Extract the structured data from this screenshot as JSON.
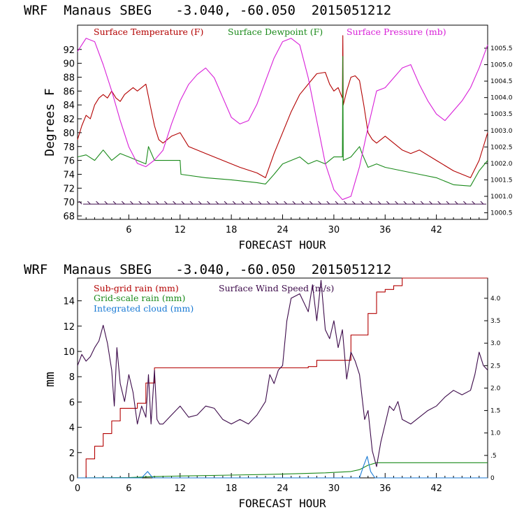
{
  "chart_data": [
    {
      "type": "line",
      "title": "WRF  Manaus SBEG   -3.040, -60.050  2015051212",
      "xlabel": "FORECAST HOUR",
      "ylabel": "Degrees F",
      "xlim": [
        0,
        48
      ],
      "ylim": [
        67.5,
        95.5
      ],
      "x_ticks": [
        6,
        12,
        18,
        24,
        30,
        36,
        42
      ],
      "y_ticks": [
        68,
        70,
        72,
        74,
        76,
        78,
        80,
        82,
        84,
        86,
        88,
        90,
        92
      ],
      "y2_ticks": [
        "1000.5",
        "1001.0",
        "1001.5",
        "1002.0",
        "1002.5",
        "1003.0",
        "1003.5",
        "1004.0",
        "1004.5",
        "1005.0",
        "1005.5"
      ],
      "y2_lim": [
        1000.3,
        1006.2
      ],
      "legend": [
        {
          "label": "Surface Temperature (F)",
          "color": "#b30000"
        },
        {
          "label": "Surface Dewpoint (F)",
          "color": "#1a8a1a"
        },
        {
          "label": "Surface Pressure (mb)",
          "color": "#d81fd8"
        }
      ],
      "series": [
        {
          "name": "Surface Temperature (F)",
          "color": "#b30000",
          "axis": "left",
          "x": [
            0,
            0.5,
            1,
            1.5,
            2,
            2.5,
            3,
            3.5,
            4,
            4.5,
            5,
            5.5,
            6,
            6.5,
            7,
            7.5,
            8,
            8.5,
            9,
            9.5,
            10,
            11,
            12,
            13,
            15,
            17,
            19,
            21,
            22,
            23,
            24,
            25,
            26,
            27,
            28,
            29,
            29.5,
            30,
            30.5,
            31,
            31.05,
            31.1,
            31.5,
            32,
            32.5,
            33,
            33.5,
            34,
            34.5,
            35,
            36,
            37,
            38,
            39,
            40,
            42,
            44,
            46,
            47,
            48
          ],
          "y": [
            79,
            81,
            82.5,
            82,
            84,
            85,
            85.5,
            85,
            86,
            85,
            84.5,
            85.5,
            86,
            86.5,
            86,
            86.5,
            87,
            84,
            81,
            79,
            78.5,
            79.5,
            80,
            78,
            77,
            76,
            75,
            74.2,
            73.5,
            77,
            80,
            83,
            85.5,
            87,
            88.5,
            88.7,
            87,
            86,
            86.5,
            85,
            94,
            84,
            86,
            88,
            88.2,
            87.5,
            84,
            80,
            79,
            78.5,
            79.5,
            78.5,
            77.5,
            77,
            77.5,
            76,
            74.5,
            73.5,
            76,
            80
          ]
        },
        {
          "name": "Surface Dewpoint (F)",
          "color": "#1a8a1a",
          "axis": "left",
          "x": [
            0,
            1,
            2,
            3,
            4,
            5,
            6,
            7,
            8,
            8.3,
            9,
            10,
            12,
            12.1,
            15,
            18,
            21,
            22,
            23,
            24,
            25,
            26,
            27,
            28,
            29,
            30,
            31,
            31.05,
            31.1,
            32,
            33,
            33.3,
            34,
            35,
            36,
            38,
            40,
            42,
            44,
            46,
            47,
            48
          ],
          "y": [
            76.5,
            76.8,
            76,
            77.5,
            76,
            77,
            76.5,
            76,
            75.5,
            78,
            76,
            76,
            76,
            74,
            73.5,
            73.2,
            72.8,
            72.6,
            74,
            75.5,
            76,
            76.5,
            75.5,
            76,
            75.5,
            76.5,
            76.5,
            91,
            76,
            76.5,
            78,
            77,
            75,
            75.5,
            75,
            74.5,
            74,
            73.5,
            72.5,
            72.3,
            74.5,
            76
          ]
        },
        {
          "name": "Surface Pressure (mb)",
          "color": "#d81fd8",
          "axis": "right",
          "x": [
            0,
            1,
            2,
            3,
            4,
            5,
            6,
            7,
            8,
            9,
            10,
            11,
            12,
            13,
            14,
            15,
            16,
            17,
            18,
            19,
            20,
            21,
            22,
            23,
            24,
            25,
            26,
            27,
            28,
            29,
            30,
            31,
            32,
            33,
            34,
            35,
            36,
            37,
            38,
            39,
            40,
            41,
            42,
            43,
            44,
            45,
            46,
            47,
            48
          ],
          "y": [
            1005.4,
            1005.8,
            1005.7,
            1005.0,
            1004.2,
            1003.3,
            1002.5,
            1002.0,
            1001.9,
            1002.1,
            1002.4,
            1003.2,
            1003.9,
            1004.4,
            1004.7,
            1004.9,
            1004.6,
            1004.0,
            1003.4,
            1003.2,
            1003.3,
            1003.8,
            1004.5,
            1005.2,
            1005.7,
            1005.8,
            1005.6,
            1004.6,
            1003.3,
            1002.0,
            1001.2,
            1000.9,
            1001.0,
            1001.9,
            1003.1,
            1004.2,
            1004.3,
            1004.6,
            1004.9,
            1005.0,
            1004.4,
            1003.9,
            1003.5,
            1003.3,
            1003.6,
            1003.9,
            1004.3,
            1004.9,
            1005.6
          ]
        }
      ],
      "wind_barb_row_value": 69.7
    },
    {
      "type": "line",
      "title": "WRF  Manaus SBEG   -3.040, -60.050  2015051212",
      "xlabel": "FORECAST HOUR",
      "ylabel": "mm",
      "xlim": [
        0,
        48
      ],
      "ylim": [
        0,
        15.8
      ],
      "x_ticks": [
        0,
        6,
        12,
        18,
        24,
        30,
        36,
        42
      ],
      "y_ticks": [
        0,
        2,
        4,
        6,
        8,
        10,
        12,
        14
      ],
      "y2_ticks": [
        "0",
        ".5",
        "1.0",
        "1.5",
        "2.0",
        "2.5",
        "3.0",
        "3.5",
        "4.0"
      ],
      "y2_lim": [
        0,
        4.45
      ],
      "legend": [
        {
          "label": "Sub-grid rain (mm)",
          "color": "#b30000"
        },
        {
          "label": "Surface Wind Speed (m/s)",
          "color": "#3c0a4a"
        },
        {
          "label": "Grid-scale rain (mm)",
          "color": "#1a8a1a"
        },
        {
          "label": "Integrated cloud (mm)",
          "color": "#1a7ad4"
        }
      ],
      "series": [
        {
          "name": "Sub-grid rain (mm)",
          "color": "#b30000",
          "axis": "left",
          "step": true,
          "x": [
            0,
            1,
            2,
            3,
            4,
            5,
            7,
            8,
            9,
            21,
            22,
            27,
            28,
            31,
            32,
            34,
            35,
            36,
            37,
            38,
            48
          ],
          "y": [
            0,
            1.5,
            2.5,
            3.5,
            4.5,
            5.5,
            5.9,
            7.5,
            8.7,
            8.7,
            8.7,
            8.8,
            9.3,
            9.3,
            11.3,
            13.0,
            14.7,
            14.9,
            15.2,
            15.8,
            15.8
          ]
        },
        {
          "name": "Grid-scale rain (mm)",
          "color": "#1a8a1a",
          "axis": "left",
          "x": [
            0,
            6,
            9,
            12,
            18,
            24,
            29,
            32,
            33,
            34,
            35,
            48
          ],
          "y": [
            0,
            0.02,
            0.1,
            0.15,
            0.22,
            0.3,
            0.4,
            0.5,
            0.65,
            1.0,
            1.2,
            1.2
          ]
        },
        {
          "name": "Integrated cloud (mm)",
          "color": "#1a7ad4",
          "axis": "left",
          "x": [
            0,
            7.5,
            8.2,
            8.8,
            9.5,
            20,
            33,
            33.5,
            33.9,
            34.3,
            34.8,
            48
          ],
          "y": [
            0,
            0,
            0.5,
            0,
            0,
            0,
            0,
            1.0,
            1.7,
            0.5,
            0,
            0
          ]
        },
        {
          "name": "Surface Wind Speed (m/s)",
          "color": "#3c0a4a",
          "axis": "right",
          "x": [
            0,
            0.5,
            1,
            1.5,
            2,
            2.5,
            3,
            3.5,
            4,
            4.3,
            4.6,
            5,
            5.5,
            6,
            6.5,
            7,
            7.5,
            8,
            8.3,
            8.6,
            9,
            9.3,
            9.6,
            10,
            11,
            12,
            13,
            14,
            15,
            16,
            17,
            18,
            19,
            20,
            21,
            22,
            22.5,
            23,
            23.5,
            24,
            24.5,
            25,
            26,
            27,
            27.5,
            28,
            28.5,
            29,
            29.5,
            30,
            30.5,
            31,
            31.5,
            32,
            32.5,
            33,
            33.3,
            33.6,
            34,
            34.5,
            35,
            35.5,
            36,
            36.5,
            37,
            37.5,
            38,
            39,
            40,
            41,
            42,
            43,
            44,
            45,
            46,
            46.5,
            47,
            47.5,
            48
          ],
          "y": [
            2.5,
            2.75,
            2.6,
            2.7,
            2.9,
            3.05,
            3.4,
            3.0,
            2.4,
            1.6,
            2.9,
            2.1,
            1.7,
            2.3,
            1.9,
            1.2,
            1.6,
            1.35,
            2.3,
            1.2,
            2.4,
            1.3,
            1.2,
            1.2,
            1.4,
            1.6,
            1.35,
            1.4,
            1.6,
            1.55,
            1.3,
            1.2,
            1.3,
            1.2,
            1.4,
            1.7,
            2.3,
            2.1,
            2.4,
            2.5,
            3.5,
            4.0,
            4.1,
            3.7,
            4.3,
            3.5,
            4.4,
            3.3,
            3.1,
            3.5,
            2.9,
            3.3,
            2.2,
            2.8,
            2.6,
            2.3,
            1.8,
            1.3,
            1.5,
            0.6,
            0.25,
            0.8,
            1.2,
            1.6,
            1.5,
            1.7,
            1.3,
            1.2,
            1.35,
            1.5,
            1.6,
            1.8,
            1.95,
            1.85,
            1.95,
            2.3,
            2.8,
            2.5,
            2.4
          ]
        }
      ]
    }
  ]
}
